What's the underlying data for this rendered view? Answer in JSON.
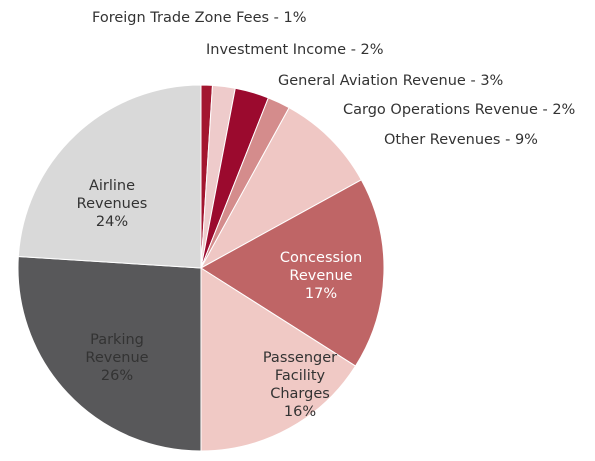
{
  "chart_data": {
    "type": "pie",
    "categories": [
      "Foreign Trade Zone Fees",
      "Investment Income",
      "General Aviation Revenue",
      "Cargo Operations Revenue",
      "Other Revenues",
      "Concession Revenue",
      "Passenger Facility Charges",
      "Parking Revenue",
      "Airline Revenues"
    ],
    "values": [
      1,
      2,
      3,
      2,
      9,
      17,
      16,
      26,
      24
    ],
    "value_labels": [
      "1%",
      "2%",
      "3%",
      "2%",
      "9%",
      "17%",
      "16%",
      "26%",
      "24%"
    ],
    "label_separator": " - ",
    "colors": [
      "#a3162f",
      "#eecbcb",
      "#9b0a2e",
      "#d48c8c",
      "#efc7c4",
      "#bf6566",
      "#f0c9c5",
      "#58585a",
      "#d9d9d9"
    ]
  }
}
